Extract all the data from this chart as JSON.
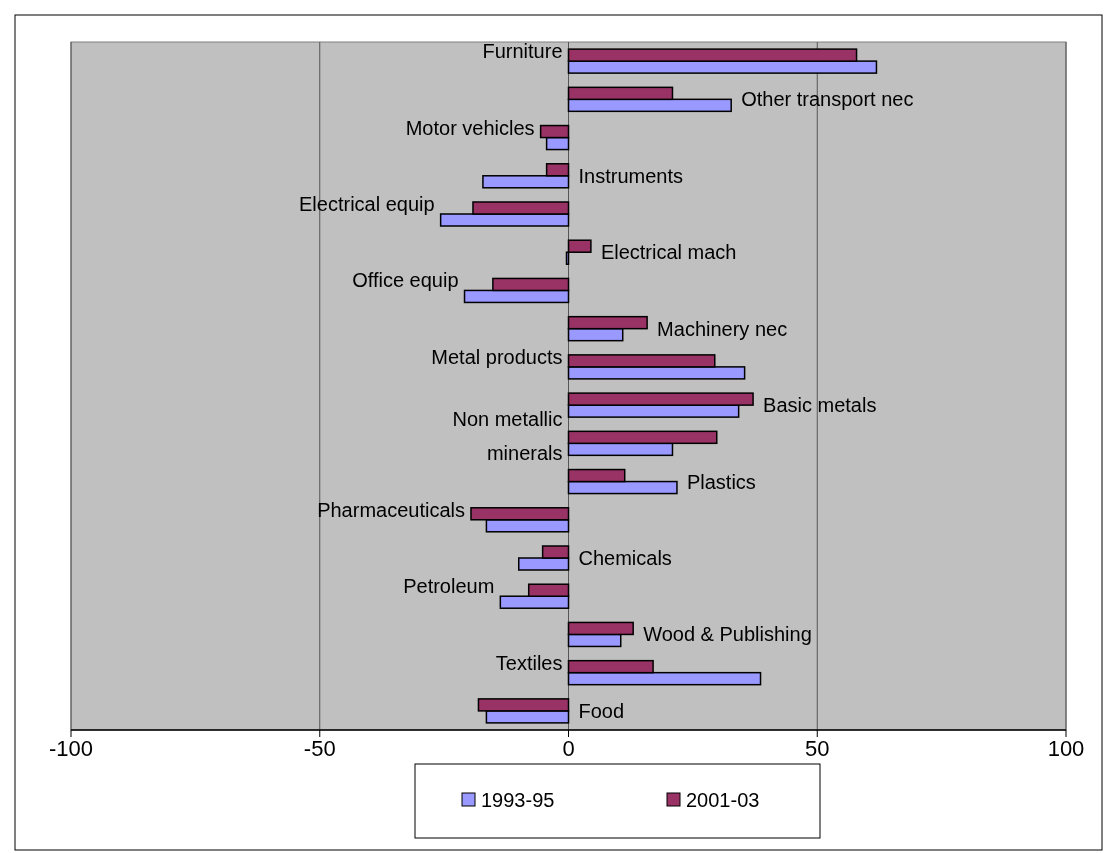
{
  "chart_data": {
    "type": "bar",
    "orientation": "horizontal",
    "categories": [
      "Furniture",
      "Other transport nec",
      "Motor vehicles",
      "Instruments",
      "Electrical equip",
      "Electrical mach",
      "Office equip",
      "Machinery nec",
      "Metal products",
      "Basic metals",
      "Non metallic minerals",
      "Plastics",
      "Pharmaceuticals",
      "Chemicals",
      "Petroleum",
      "Wood & Publishing",
      "Textiles",
      "Food"
    ],
    "series": [
      {
        "name": "1993-95",
        "color": "#9999ff",
        "values": [
          61.9,
          32.7,
          -4.4,
          -17.2,
          -25.7,
          -0.4,
          -20.9,
          10.9,
          35.4,
          34.2,
          20.9,
          21.8,
          -16.5,
          -10,
          -13.7,
          10.5,
          38.6,
          -16.5
        ]
      },
      {
        "name": "2001-03",
        "color": "#993366",
        "values": [
          57.9,
          20.9,
          -5.6,
          -4.4,
          -19.2,
          4.5,
          -15.2,
          15.8,
          29.4,
          37.1,
          29.8,
          11.3,
          -19.6,
          -5.2,
          -8,
          13,
          17,
          -18.1
        ]
      }
    ],
    "xlim": [
      -100,
      100
    ],
    "xticks": [
      -100,
      -50,
      0,
      50,
      100
    ],
    "grid": "x",
    "legend": "bottom"
  }
}
